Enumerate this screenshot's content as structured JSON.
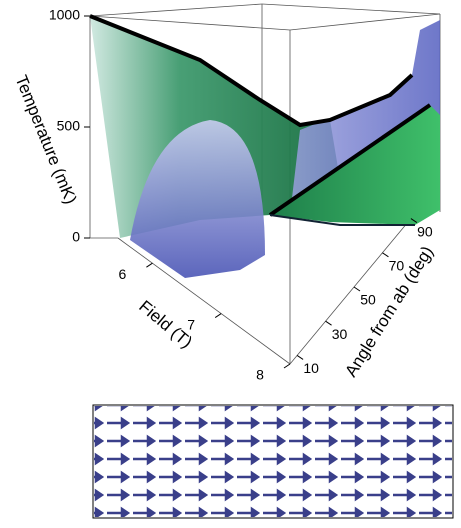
{
  "chart_data": {
    "type": "surface3d",
    "zlabel": "Temperature (mK)",
    "xlabel": "Field (T)",
    "ylabel": "Angle from ab (deg)",
    "zlim": [
      0,
      1000
    ],
    "zticks": [
      0,
      500,
      1000
    ],
    "xlim": [
      5.5,
      8
    ],
    "xticks": [
      6,
      7,
      8
    ],
    "ylim": [
      5,
      95
    ],
    "yticks": [
      10,
      30,
      50,
      70,
      90
    ]
  }
}
